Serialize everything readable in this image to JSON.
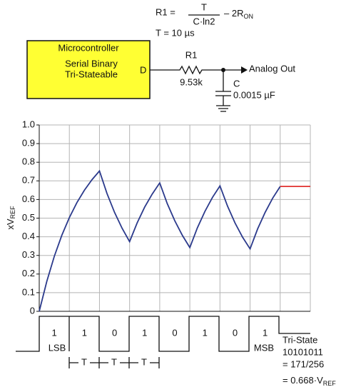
{
  "formula": {
    "lhs": "R1 =",
    "numerator": "T",
    "denominator": "C·ln2",
    "minus": "– 2R",
    "subscript": "ON",
    "period": "T = 10 µs"
  },
  "circuit": {
    "block_lines": [
      "Microcontroller",
      "Serial Binary",
      "Tri-Stateable"
    ],
    "pin": "D",
    "r_name": "R1",
    "r_value": "9.53k",
    "c_name": "C",
    "c_value": "0.0015 µF",
    "output": "Analog Out"
  },
  "chart_data": {
    "type": "line",
    "y_label": "xV",
    "y_label_sub": "REF",
    "xlim": [
      0,
      9
    ],
    "xticks": [
      0,
      1,
      2,
      3,
      4,
      5,
      6,
      7,
      8,
      9
    ],
    "ylim": [
      0,
      1
    ],
    "yticks": [
      0,
      0.1,
      0.2,
      0.3,
      0.4,
      0.5,
      0.6,
      0.7,
      0.8,
      0.9,
      {
        "value": 1,
        "label": "1.0"
      }
    ],
    "grid": true,
    "series": [
      {
        "color": "#2b3a8c",
        "x": [
          0,
          0.25,
          0.5,
          0.75,
          1,
          1.25,
          1.5,
          1.75,
          2,
          2.25,
          2.5,
          2.75,
          3,
          3.25,
          3.5,
          3.75,
          4,
          4.25,
          4.5,
          4.75,
          5,
          5.25,
          5.5,
          5.75,
          6,
          6.25,
          6.5,
          6.75,
          7,
          7.25,
          7.5,
          7.75,
          8
        ],
        "values": [
          0,
          0.16,
          0.295,
          0.408,
          0.503,
          0.583,
          0.65,
          0.706,
          0.753,
          0.632,
          0.531,
          0.446,
          0.374,
          0.474,
          0.559,
          0.629,
          0.689,
          0.578,
          0.486,
          0.408,
          0.342,
          0.448,
          0.536,
          0.611,
          0.673,
          0.565,
          0.474,
          0.398,
          0.335,
          0.442,
          0.531,
          0.607,
          0.67
        ]
      },
      {
        "color": "#e0312f",
        "x": [
          8,
          9
        ],
        "values": [
          0.67,
          0.67
        ]
      }
    ]
  },
  "timing": {
    "bits": [
      "1",
      "1",
      "0",
      "1",
      "0",
      "1",
      "0",
      "1"
    ],
    "lsb": "LSB",
    "msb": "MSB",
    "period": "T",
    "note": [
      "Tri-State",
      "10101011",
      "= 171/256",
      "= 0.668·V"
    ],
    "note_sub": "REF"
  }
}
